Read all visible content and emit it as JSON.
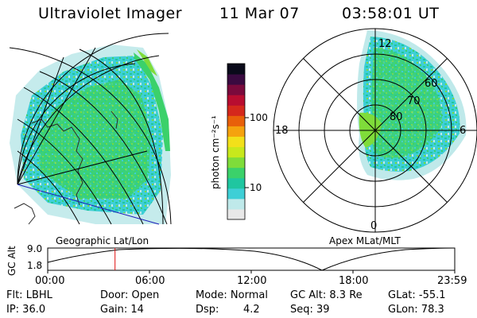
{
  "header": {
    "instrument": "Ultraviolet Imager",
    "date": "11 Mar 07",
    "time": "03:58:01 UT"
  },
  "colorbar": {
    "label": "photon cm⁻²s⁻¹",
    "tick_100": "100",
    "tick_10": "10",
    "colors": [
      "#e8e8e8",
      "#bfe9ea",
      "#3ecfd6",
      "#1fc6a0",
      "#3bd16a",
      "#7fdc3a",
      "#c8e81c",
      "#f2e01a",
      "#f5a20e",
      "#e8600a",
      "#d4281c",
      "#b80d30",
      "#7a0a3c",
      "#3a0a40",
      "#0a0a1a"
    ]
  },
  "left_panel": {
    "caption": "Geographic Lat/Lon",
    "land_color": "#2a2a2a"
  },
  "right_panel": {
    "caption": "Apex MLat/MLT",
    "mlt_12": "12",
    "mlt_18": "18",
    "mlt_6": "6",
    "mlt_0": "0",
    "lat_60": "60",
    "lat_70": "70",
    "lat_80": "80"
  },
  "altitude_plot": {
    "axis_label": "GC Alt",
    "y_top": "9.0",
    "y_bottom": "1.8",
    "x_labels": [
      "00:00",
      "06:00",
      "12:00",
      "18:00",
      "23:59"
    ],
    "marker_color": "#e01010",
    "current_time_hours": 3.97
  },
  "status": {
    "flt": "Flt: LBHL",
    "door": "Door: Open",
    "mode": "Mode: Normal",
    "gc_alt": "GC Alt: 8.3 Re",
    "glat": "GLat: -55.1",
    "ip": "IP: 36.0",
    "gain": "Gain: 14",
    "dsp_label": "Dsp:",
    "dsp_value": "4.2",
    "seq": "Seq: 39",
    "glon": "GLon: 78.3"
  }
}
